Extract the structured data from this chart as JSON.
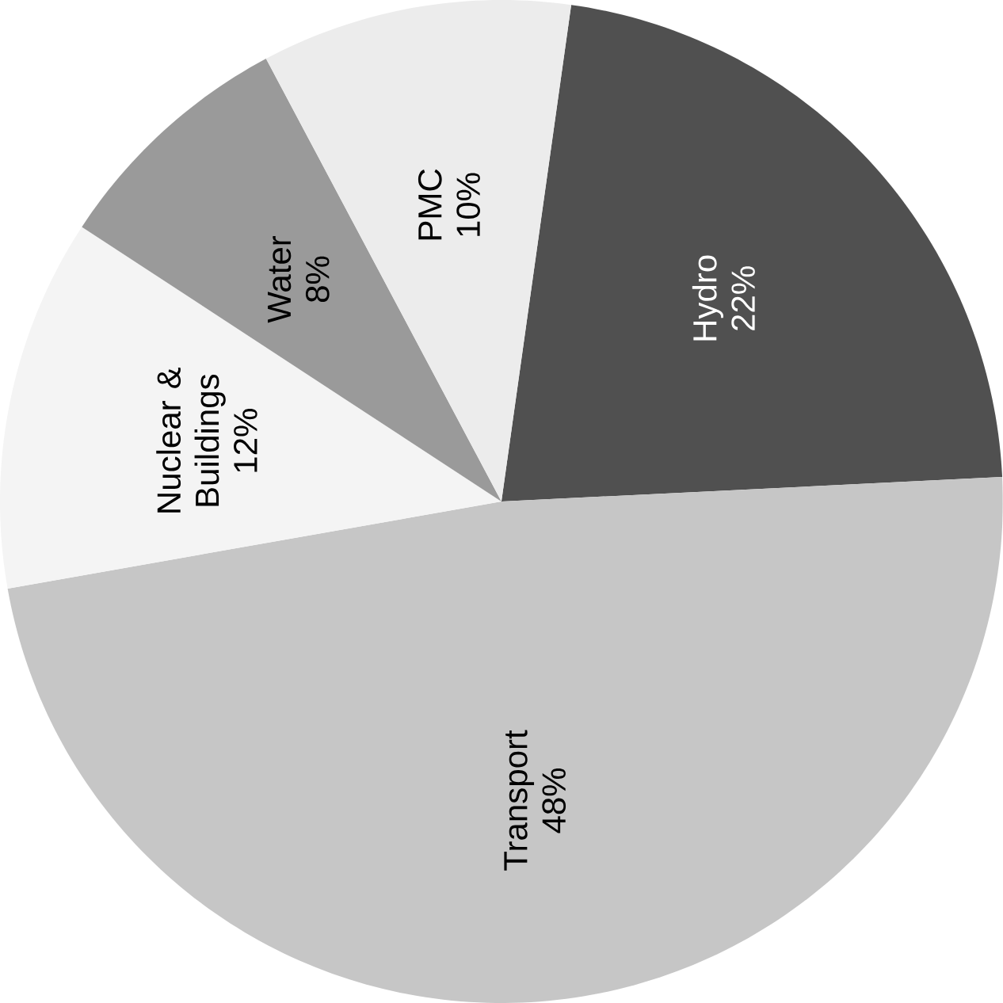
{
  "chart_data": {
    "type": "pie",
    "categories": [
      "Hydro",
      "Transport",
      "Nuclear & Buildings",
      "Water",
      "PMC"
    ],
    "values": [
      22,
      48,
      12,
      8,
      10
    ],
    "value_labels": [
      "22%",
      "48%",
      "12%",
      "8%",
      "10%"
    ],
    "colors": [
      "#505050",
      "#c6c6c6",
      "#f4f4f4",
      "#9a9a9a",
      "#ececec"
    ]
  }
}
